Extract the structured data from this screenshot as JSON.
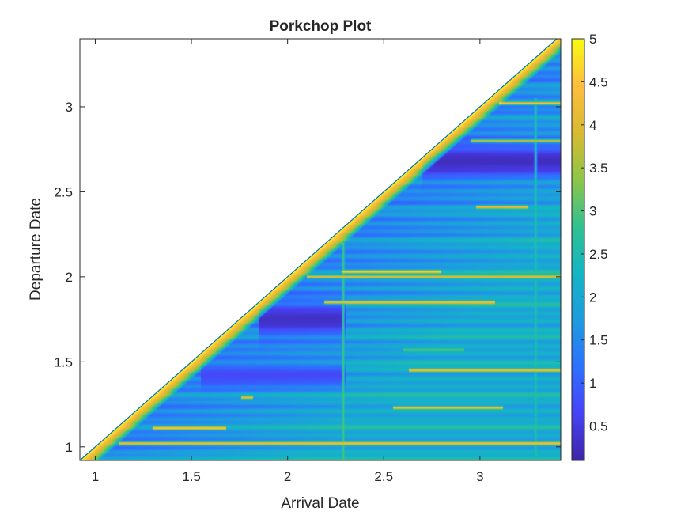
{
  "chart_data": {
    "type": "heatmap",
    "title": "Porkchop Plot",
    "xlabel": "Arrival Date",
    "ylabel": "Departure Date",
    "xlim": [
      0.92,
      3.42
    ],
    "ylim": [
      0.92,
      3.4
    ],
    "x_ticks": [
      1,
      1.5,
      2,
      2.5,
      3
    ],
    "x_tick_labels": [
      "1",
      "1.5",
      "2",
      "2.5",
      "3"
    ],
    "y_ticks": [
      1,
      1.5,
      2,
      2.5,
      3
    ],
    "y_tick_labels": [
      "1",
      "1.5",
      "2",
      "2.5",
      "3"
    ],
    "colorbar": {
      "limits": [
        0.1,
        5
      ],
      "ticks": [
        0.5,
        1,
        1.5,
        2,
        2.5,
        3,
        3.5,
        4,
        4.5,
        5
      ],
      "tick_labels": [
        "0.5",
        "1",
        "1.5",
        "2",
        "2.5",
        "3",
        "3.5",
        "4",
        "4.5",
        "5"
      ],
      "colormap": "parula",
      "colormap_stops": [
        "#3e26a8",
        "#4743f8",
        "#2d72ff",
        "#1e9ce0",
        "#14b5c5",
        "#31c191",
        "#8dc649",
        "#d9ba30",
        "#fdbd3d",
        "#f9fa14"
      ]
    },
    "valid_region": "departure date <= arrival date",
    "diagonal_band": {
      "value": 5,
      "width": 0.1
    },
    "background_trend": {
      "value_at_diagonal": 1.4,
      "value_far": 2.1
    },
    "ridges": [
      {
        "departure": 1.02,
        "from": 1.12,
        "to": 3.42,
        "value": 4.4
      },
      {
        "departure": 1.11,
        "from": 1.3,
        "to": 1.68,
        "value": 4.6
      },
      {
        "departure": 1.29,
        "from": 1.76,
        "to": 1.82,
        "value": 4.2
      },
      {
        "departure": 1.23,
        "from": 2.55,
        "to": 3.12,
        "value": 4.3
      },
      {
        "departure": 1.45,
        "from": 2.63,
        "to": 3.42,
        "value": 4.3
      },
      {
        "departure": 1.57,
        "from": 2.6,
        "to": 2.92,
        "value": 3.2
      },
      {
        "departure": 1.85,
        "from": 2.19,
        "to": 3.08,
        "value": 4.4
      },
      {
        "departure": 2.03,
        "from": 2.28,
        "to": 2.8,
        "value": 4.6
      },
      {
        "departure": 2.0,
        "from": 2.1,
        "to": 3.42,
        "value": 4.2
      },
      {
        "departure": 2.41,
        "from": 2.98,
        "to": 3.25,
        "value": 4.2
      },
      {
        "departure": 2.8,
        "from": 2.95,
        "to": 3.42,
        "value": 3.8
      },
      {
        "departure": 3.02,
        "from": 3.1,
        "to": 3.42,
        "value": 4.5
      }
    ],
    "low_zones": [
      {
        "departure": 1.75,
        "from": 1.85,
        "to": 2.3,
        "half_width": 0.1,
        "value": 0.3
      },
      {
        "departure": 2.68,
        "from": 2.7,
        "to": 3.42,
        "half_width": 0.1,
        "value": 0.25
      },
      {
        "departure": 1.42,
        "from": 1.55,
        "to": 2.3,
        "half_width": 0.07,
        "value": 0.7
      }
    ],
    "vertical_lines": [
      {
        "arrival": 2.29,
        "from": 0.92,
        "to": 2.2,
        "value": 3.0
      },
      {
        "arrival": 3.29,
        "from": 0.92,
        "to": 3.05,
        "value": 2.6
      }
    ]
  }
}
